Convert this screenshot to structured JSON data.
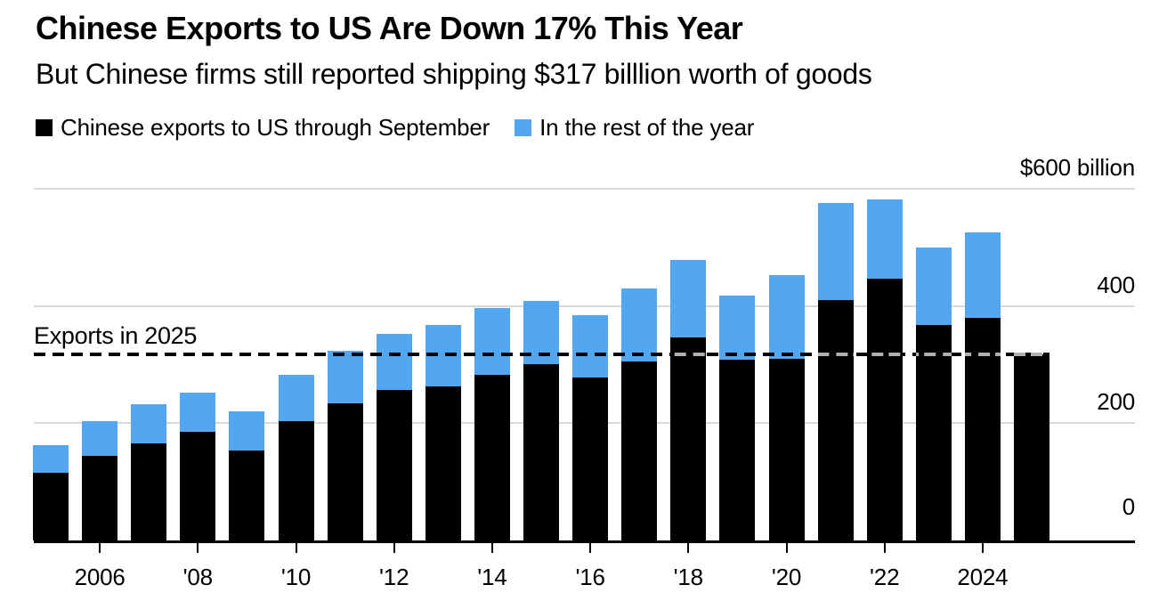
{
  "header": {
    "title": "Chinese Exports to US Are Down 17% This Year",
    "subtitle": "But Chinese firms still reported shipping $317 billlion worth of goods"
  },
  "chart_data": {
    "type": "bar",
    "stacked": true,
    "title": "Chinese Exports to US Are Down 17% This Year",
    "subtitle": "But Chinese firms still reported shipping $317 billlion worth of goods",
    "categories": [
      2005,
      2006,
      2007,
      2008,
      2009,
      2010,
      2011,
      2012,
      2013,
      2014,
      2015,
      2016,
      2017,
      2018,
      2019,
      2020,
      2021,
      2022,
      2023,
      2024,
      2025
    ],
    "series": [
      {
        "name": "Chinese exports to US through September",
        "color": "#000000",
        "values": [
          115,
          145,
          166,
          186,
          154,
          203,
          234,
          257,
          263,
          283,
          301,
          278,
          305,
          347,
          308,
          310,
          410,
          446,
          368,
          380,
          317
        ]
      },
      {
        "name": "In the rest of the year",
        "color": "#52a7f0",
        "values": [
          48,
          58,
          66,
          66,
          67,
          80,
          90,
          95,
          105,
          114,
          108,
          107,
          125,
          131,
          110,
          142,
          166,
          136,
          132,
          145,
          0
        ]
      }
    ],
    "totals": [
      163,
      203,
      232,
      252,
      221,
      283,
      324,
      352,
      368,
      397,
      409,
      385,
      430,
      478,
      418,
      452,
      576,
      582,
      500,
      525,
      317
    ],
    "ylim": [
      0,
      600
    ],
    "yticks": [
      {
        "value": 600,
        "label": "$600 billion"
      },
      {
        "value": 400,
        "label": "400"
      },
      {
        "value": 200,
        "label": "200"
      },
      {
        "value": 0,
        "label": "0"
      }
    ],
    "xticks": [
      {
        "year": 2006,
        "label": "2006"
      },
      {
        "year": 2008,
        "label": "'08"
      },
      {
        "year": 2010,
        "label": "'10"
      },
      {
        "year": 2012,
        "label": "'12"
      },
      {
        "year": 2014,
        "label": "'14"
      },
      {
        "year": 2016,
        "label": "'16"
      },
      {
        "year": 2018,
        "label": "'18"
      },
      {
        "year": 2020,
        "label": "'20"
      },
      {
        "year": 2022,
        "label": "'22"
      },
      {
        "year": 2024,
        "label": "2024"
      }
    ],
    "annotation": {
      "label": "Exports in 2025",
      "value": 317
    },
    "legend_position": "top",
    "grid": "horizontal",
    "colors": {
      "september": "#000000",
      "rest_of_year": "#52a7f0",
      "gridline": "#d9d9d9",
      "dashed_line": "#000000"
    }
  }
}
